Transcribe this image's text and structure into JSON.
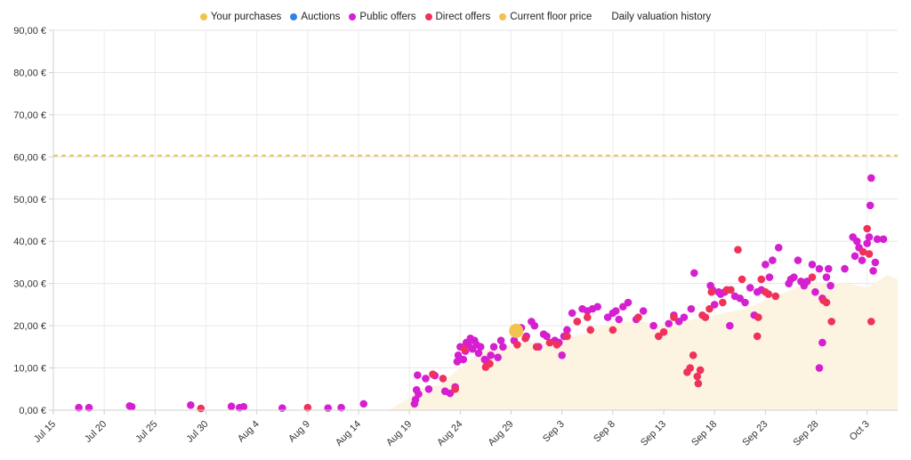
{
  "legend": [
    {
      "label": "Your purchases",
      "color": "#f2c14e"
    },
    {
      "label": "Auctions",
      "color": "#2f80ed"
    },
    {
      "label": "Public offers",
      "color": "#d61fd0"
    },
    {
      "label": "Direct offers",
      "color": "#f0325a"
    },
    {
      "label": "Current floor price",
      "color": "#f2c14e"
    },
    {
      "label": "Daily valuation history",
      "color": ""
    }
  ],
  "chart_data": {
    "type": "scatter",
    "x_axis": {
      "unit": "days",
      "range": [
        0,
        83
      ],
      "tick_labels": [
        "Jul 15",
        "Jul 20",
        "Jul 25",
        "Jul 30",
        "Aug 4",
        "Aug 9",
        "Aug 14",
        "Aug 19",
        "Aug 24",
        "Aug 29",
        "Sep 3",
        "Sep 8",
        "Sep 13",
        "Sep 18",
        "Sep 23",
        "Sep 28",
        "Oct 3"
      ],
      "tick_values": [
        0,
        5,
        10,
        15,
        20,
        25,
        30,
        35,
        40,
        45,
        50,
        55,
        60,
        65,
        70,
        75,
        80
      ]
    },
    "y_axis": {
      "range": [
        0,
        90
      ],
      "ticks": [
        0,
        10,
        20,
        30,
        40,
        50,
        60,
        70,
        80,
        90
      ],
      "tick_labels": [
        "0,00 €",
        "10,00 €",
        "20,00 €",
        "30,00 €",
        "40,00 €",
        "50,00 €",
        "60,00 €",
        "70,00 €",
        "80,00 €",
        "90,00 €"
      ]
    },
    "grid": true,
    "legend_position": "top-center",
    "floor_price": 60.3,
    "colors": {
      "your_purchases": "#f2c14e",
      "public_offers": "#d61fd0",
      "direct_offers": "#f0325a",
      "floor": "#f2c14e",
      "valuation_fill": "#fdf3e1"
    },
    "your_purchases": [
      [
        45.5,
        18.8
      ]
    ],
    "valuation_history": [
      [
        0,
        0
      ],
      [
        33,
        0
      ],
      [
        35,
        3
      ],
      [
        36,
        5
      ],
      [
        38,
        6
      ],
      [
        40,
        10
      ],
      [
        42,
        14
      ],
      [
        44,
        15
      ],
      [
        46,
        16
      ],
      [
        48,
        16
      ],
      [
        50,
        17
      ],
      [
        52,
        18
      ],
      [
        54,
        20
      ],
      [
        56,
        21
      ],
      [
        58,
        21
      ],
      [
        60,
        20
      ],
      [
        62,
        21
      ],
      [
        64,
        22
      ],
      [
        66,
        23
      ],
      [
        68,
        24
      ],
      [
        70,
        26
      ],
      [
        72,
        28
      ],
      [
        74,
        30
      ],
      [
        76,
        30
      ],
      [
        78,
        30
      ],
      [
        80,
        29
      ],
      [
        82,
        32
      ],
      [
        83,
        31
      ]
    ],
    "public_offers": [
      [
        2.5,
        0.6
      ],
      [
        3.5,
        0.6
      ],
      [
        7.5,
        1.0
      ],
      [
        7.7,
        0.8
      ],
      [
        13.5,
        1.2
      ],
      [
        17.5,
        0.9
      ],
      [
        18.3,
        0.6
      ],
      [
        18.7,
        0.8
      ],
      [
        22.5,
        0.5
      ],
      [
        27,
        0.5
      ],
      [
        28.3,
        0.6
      ],
      [
        30.5,
        1.5
      ],
      [
        35.5,
        1.5
      ],
      [
        35.6,
        2.5
      ],
      [
        35.7,
        4.8
      ],
      [
        35.8,
        8.3
      ],
      [
        35.9,
        3.8
      ],
      [
        36.6,
        7.5
      ],
      [
        36.9,
        5.0
      ],
      [
        37.5,
        8.2
      ],
      [
        38.5,
        4.5
      ],
      [
        39,
        4.0
      ],
      [
        39.5,
        5.5
      ],
      [
        39.7,
        11.5
      ],
      [
        39.8,
        13.0
      ],
      [
        40.0,
        15.0
      ],
      [
        40.3,
        12.0
      ],
      [
        40.5,
        14.0
      ],
      [
        40.6,
        16.0
      ],
      [
        40.8,
        15.5
      ],
      [
        41.0,
        17.0
      ],
      [
        41.2,
        14.5
      ],
      [
        41.4,
        16.5
      ],
      [
        41.6,
        15.5
      ],
      [
        41.8,
        13.5
      ],
      [
        42.0,
        15.0
      ],
      [
        42.4,
        12.0
      ],
      [
        42.6,
        11.5
      ],
      [
        43.0,
        13.0
      ],
      [
        43.3,
        15.0
      ],
      [
        43.7,
        12.5
      ],
      [
        44.0,
        16.5
      ],
      [
        44.2,
        15.0
      ],
      [
        45.3,
        16.5
      ],
      [
        46,
        19.5
      ],
      [
        46.5,
        17.5
      ],
      [
        47,
        21.0
      ],
      [
        47.3,
        20.0
      ],
      [
        47.7,
        15.0
      ],
      [
        48.2,
        18.0
      ],
      [
        48.5,
        17.5
      ],
      [
        49.3,
        16.5
      ],
      [
        49.7,
        16.0
      ],
      [
        50.0,
        13.0
      ],
      [
        50.2,
        17.5
      ],
      [
        50.5,
        19.0
      ],
      [
        51.0,
        23.0
      ],
      [
        51.5,
        21.0
      ],
      [
        52.0,
        24.0
      ],
      [
        52.5,
        23.5
      ],
      [
        53,
        24.0
      ],
      [
        53.5,
        24.5
      ],
      [
        54.5,
        22.0
      ],
      [
        55,
        23.0
      ],
      [
        55.3,
        23.5
      ],
      [
        55.6,
        21.5
      ],
      [
        56,
        24.5
      ],
      [
        56.5,
        25.5
      ],
      [
        57.3,
        21.5
      ],
      [
        58,
        23.5
      ],
      [
        59,
        20.0
      ],
      [
        60.5,
        20.5
      ],
      [
        61,
        22.5
      ],
      [
        61.5,
        21.0
      ],
      [
        62,
        22.0
      ],
      [
        62.7,
        24.0
      ],
      [
        63,
        32.5
      ],
      [
        64.6,
        29.5
      ],
      [
        64.8,
        28.5
      ],
      [
        65,
        25.0
      ],
      [
        65.4,
        28.0
      ],
      [
        65.6,
        27.5
      ],
      [
        66,
        28.0
      ],
      [
        66.5,
        20.0
      ],
      [
        67,
        27.0
      ],
      [
        67.5,
        26.5
      ],
      [
        68,
        25.5
      ],
      [
        68.5,
        29.0
      ],
      [
        68.9,
        22.5
      ],
      [
        69.2,
        28.0
      ],
      [
        69.6,
        28.5
      ],
      [
        70,
        34.5
      ],
      [
        70.4,
        31.5
      ],
      [
        70.7,
        35.5
      ],
      [
        71.3,
        38.5
      ],
      [
        72.3,
        30.0
      ],
      [
        72.5,
        31.0
      ],
      [
        72.8,
        31.5
      ],
      [
        73.2,
        35.5
      ],
      [
        73.5,
        30.5
      ],
      [
        73.8,
        29.5
      ],
      [
        74.1,
        30.5
      ],
      [
        74.6,
        34.5
      ],
      [
        74.9,
        28.0
      ],
      [
        75.3,
        33.5
      ],
      [
        75.6,
        26.5
      ],
      [
        76,
        31.5
      ],
      [
        76.2,
        33.5
      ],
      [
        76.4,
        29.5
      ],
      [
        75.3,
        10.0
      ],
      [
        75.6,
        16.0
      ],
      [
        77.8,
        33.5
      ],
      [
        78.6,
        41.0
      ],
      [
        78.8,
        36.5
      ],
      [
        79,
        40.0
      ],
      [
        79.2,
        38.5
      ],
      [
        79.5,
        35.5
      ],
      [
        80.0,
        39.5
      ],
      [
        80.2,
        41.0
      ],
      [
        80.3,
        48.5
      ],
      [
        80.4,
        55.0
      ],
      [
        80.6,
        33.0
      ],
      [
        80.8,
        35.0
      ],
      [
        81.0,
        40.5
      ],
      [
        81.6,
        40.5
      ]
    ],
    "direct_offers": [
      [
        14.5,
        0.4
      ],
      [
        25,
        0.6
      ],
      [
        37.3,
        8.5
      ],
      [
        38.3,
        7.5
      ],
      [
        39.5,
        5.0
      ],
      [
        40.4,
        14.5
      ],
      [
        42.5,
        10.2
      ],
      [
        42.9,
        11.0
      ],
      [
        45.6,
        15.5
      ],
      [
        46.4,
        17.0
      ],
      [
        47.5,
        15.0
      ],
      [
        48.8,
        16.0
      ],
      [
        49.5,
        15.5
      ],
      [
        50.5,
        17.5
      ],
      [
        51.5,
        21.0
      ],
      [
        52.5,
        22.0
      ],
      [
        52.8,
        19.0
      ],
      [
        55,
        19.0
      ],
      [
        57.5,
        22.0
      ],
      [
        59.5,
        17.5
      ],
      [
        60,
        18.5
      ],
      [
        61,
        22.0
      ],
      [
        62.3,
        9.0
      ],
      [
        62.6,
        10.0
      ],
      [
        62.9,
        13.0
      ],
      [
        63.3,
        8.0
      ],
      [
        63.4,
        6.3
      ],
      [
        63.6,
        9.5
      ],
      [
        63.8,
        22.5
      ],
      [
        64.1,
        22.0
      ],
      [
        64.5,
        24.0
      ],
      [
        64.7,
        28.0
      ],
      [
        65.8,
        25.5
      ],
      [
        66.2,
        28.5
      ],
      [
        66.6,
        28.5
      ],
      [
        67.3,
        38.0
      ],
      [
        67.7,
        31.0
      ],
      [
        69.2,
        17.5
      ],
      [
        69.3,
        22.0
      ],
      [
        69.6,
        31.0
      ],
      [
        70,
        28.0
      ],
      [
        70.3,
        27.5
      ],
      [
        71,
        27.0
      ],
      [
        74.6,
        31.5
      ],
      [
        75.7,
        26.0
      ],
      [
        76,
        25.5
      ],
      [
        76.5,
        21.0
      ],
      [
        79.6,
        37.5
      ],
      [
        80,
        43.0
      ],
      [
        80.2,
        37.0
      ],
      [
        80.4,
        21.0
      ]
    ]
  }
}
